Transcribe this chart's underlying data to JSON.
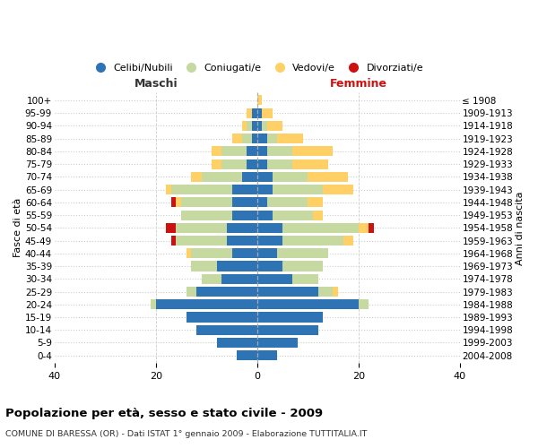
{
  "age_groups": [
    "0-4",
    "5-9",
    "10-14",
    "15-19",
    "20-24",
    "25-29",
    "30-34",
    "35-39",
    "40-44",
    "45-49",
    "50-54",
    "55-59",
    "60-64",
    "65-69",
    "70-74",
    "75-79",
    "80-84",
    "85-89",
    "90-94",
    "95-99",
    "100+"
  ],
  "birth_years": [
    "2004-2008",
    "1999-2003",
    "1994-1998",
    "1989-1993",
    "1984-1988",
    "1979-1983",
    "1974-1978",
    "1969-1973",
    "1964-1968",
    "1959-1963",
    "1954-1958",
    "1949-1953",
    "1944-1948",
    "1939-1943",
    "1934-1938",
    "1929-1933",
    "1924-1928",
    "1919-1923",
    "1914-1918",
    "1909-1913",
    "≤ 1908"
  ],
  "male_celibi": [
    4,
    8,
    12,
    14,
    20,
    12,
    7,
    8,
    5,
    6,
    6,
    5,
    5,
    5,
    3,
    2,
    2,
    1,
    1,
    1,
    0
  ],
  "male_coniugati": [
    0,
    0,
    0,
    0,
    1,
    2,
    4,
    5,
    8,
    10,
    10,
    10,
    10,
    12,
    8,
    5,
    5,
    2,
    1,
    0,
    0
  ],
  "male_vedovi": [
    0,
    0,
    0,
    0,
    0,
    0,
    0,
    0,
    1,
    0,
    0,
    0,
    1,
    1,
    2,
    2,
    2,
    2,
    1,
    1,
    0
  ],
  "male_divorziati": [
    0,
    0,
    0,
    0,
    0,
    0,
    0,
    0,
    0,
    1,
    2,
    0,
    1,
    0,
    0,
    0,
    0,
    0,
    0,
    0,
    0
  ],
  "female_celibi": [
    4,
    8,
    12,
    13,
    20,
    12,
    7,
    5,
    4,
    5,
    5,
    3,
    2,
    3,
    3,
    2,
    2,
    2,
    1,
    1,
    0
  ],
  "female_coniugati": [
    0,
    0,
    0,
    0,
    2,
    3,
    5,
    8,
    10,
    12,
    15,
    8,
    8,
    10,
    7,
    5,
    5,
    2,
    1,
    0,
    0
  ],
  "female_vedovi": [
    0,
    0,
    0,
    0,
    0,
    1,
    0,
    0,
    0,
    2,
    2,
    2,
    3,
    6,
    8,
    7,
    8,
    5,
    3,
    2,
    1
  ],
  "female_divorziati": [
    0,
    0,
    0,
    0,
    0,
    0,
    0,
    0,
    0,
    0,
    1,
    0,
    0,
    0,
    0,
    0,
    0,
    0,
    0,
    0,
    0
  ],
  "color_celibi": "#2E74B5",
  "color_coniugati": "#C5D9A0",
  "color_vedovi": "#FFD066",
  "color_divorziati": "#CC1111",
  "title": "Popolazione per età, sesso e stato civile - 2009",
  "subtitle": "COMUNE DI BARESSA (OR) - Dati ISTAT 1° gennaio 2009 - Elaborazione TUTTITALIA.IT",
  "ylabel_left": "Fasce di età",
  "ylabel_right": "Anni di nascita",
  "xlabel_left": "Maschi",
  "xlabel_right": "Femmine",
  "xlim": 40,
  "background_color": "#ffffff",
  "grid_color": "#cccccc"
}
